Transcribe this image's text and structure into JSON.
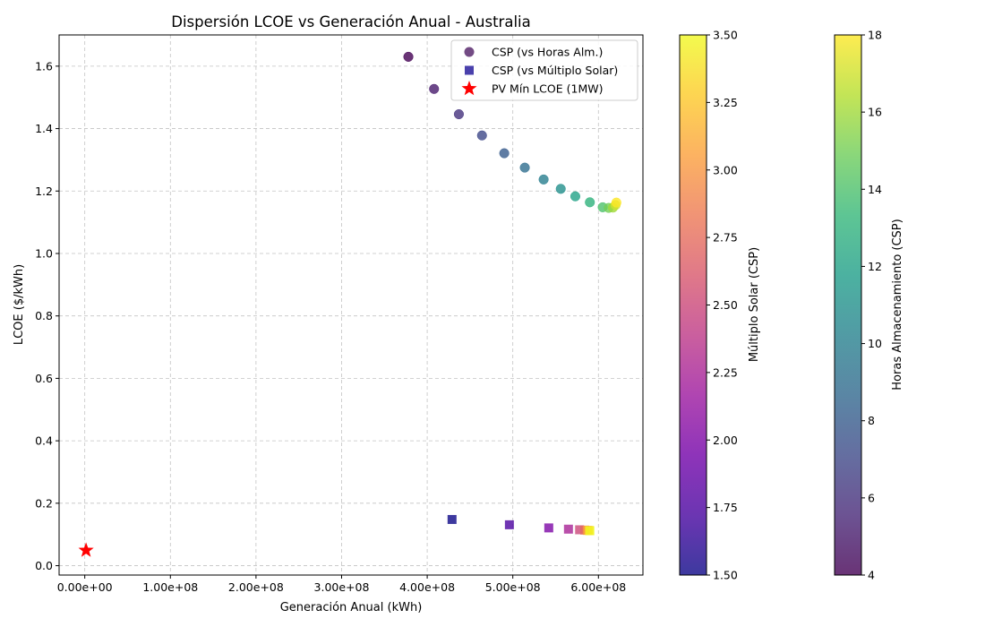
{
  "chart_data": {
    "type": "scatter",
    "title": "Dispersión LCOE vs Generación Anual - Australia",
    "xlabel": "Generación Anual (kWh)",
    "ylabel": "LCOE ($/kWh)",
    "xlim": [
      -30000000,
      652000000
    ],
    "ylim": [
      -0.03,
      1.7
    ],
    "xticks": [
      0,
      100000000,
      200000000,
      300000000,
      400000000,
      500000000,
      600000000
    ],
    "xtick_labels": [
      "0.00e+00",
      "1.00e+08",
      "2.00e+08",
      "3.00e+08",
      "4.00e+08",
      "5.00e+08",
      "6.00e+08"
    ],
    "yticks": [
      0.0,
      0.2,
      0.4,
      0.6,
      0.8,
      1.0,
      1.2,
      1.4,
      1.6
    ],
    "ytick_labels": [
      "0.0",
      "0.2",
      "0.4",
      "0.6",
      "0.8",
      "1.0",
      "1.2",
      "1.4",
      "1.6"
    ],
    "grid": true,
    "legend_position": "top-right",
    "series": [
      {
        "name": "CSP (vs Horas Alm.)",
        "marker": "circle",
        "colorbar": "hours",
        "points": [
          {
            "x": 378000000,
            "y": 1.63,
            "c": 4
          },
          {
            "x": 408000000,
            "y": 1.527,
            "c": 5
          },
          {
            "x": 437000000,
            "y": 1.446,
            "c": 6
          },
          {
            "x": 464000000,
            "y": 1.378,
            "c": 7
          },
          {
            "x": 490000000,
            "y": 1.321,
            "c": 8
          },
          {
            "x": 514000000,
            "y": 1.275,
            "c": 9
          },
          {
            "x": 536000000,
            "y": 1.237,
            "c": 10
          },
          {
            "x": 556000000,
            "y": 1.207,
            "c": 11
          },
          {
            "x": 573000000,
            "y": 1.183,
            "c": 12
          },
          {
            "x": 590000000,
            "y": 1.164,
            "c": 13
          },
          {
            "x": 605000000,
            "y": 1.148,
            "c": 14
          },
          {
            "x": 612000000,
            "y": 1.146,
            "c": 15
          },
          {
            "x": 617000000,
            "y": 1.147,
            "c": 16
          },
          {
            "x": 620000000,
            "y": 1.155,
            "c": 17
          },
          {
            "x": 621000000,
            "y": 1.163,
            "c": 18
          }
        ]
      },
      {
        "name": "CSP (vs Múltiplo Solar)",
        "marker": "square",
        "colorbar": "multiple",
        "points": [
          {
            "x": 429000000,
            "y": 0.148,
            "c": 1.5
          },
          {
            "x": 496000000,
            "y": 0.131,
            "c": 1.75
          },
          {
            "x": 542000000,
            "y": 0.121,
            "c": 2.0
          },
          {
            "x": 565000000,
            "y": 0.117,
            "c": 2.25
          },
          {
            "x": 578000000,
            "y": 0.115,
            "c": 2.5
          },
          {
            "x": 584000000,
            "y": 0.114,
            "c": 2.75
          },
          {
            "x": 587000000,
            "y": 0.113,
            "c": 3.0
          },
          {
            "x": 589000000,
            "y": 0.113,
            "c": 3.25
          },
          {
            "x": 590000000,
            "y": 0.112,
            "c": 3.5
          }
        ]
      },
      {
        "name": "PV Mín LCOE (1MW)",
        "marker": "star",
        "color": "#ff0000",
        "points": [
          {
            "x": 1500000,
            "y": 0.049
          }
        ]
      }
    ],
    "colorbars": [
      {
        "id": "multiple",
        "label": "Múltiplo Solar (CSP)",
        "colormap": "plasma",
        "range": [
          1.5,
          3.5
        ],
        "ticks": [
          1.5,
          1.75,
          2.0,
          2.25,
          2.5,
          2.75,
          3.0,
          3.25,
          3.5
        ],
        "tick_labels": [
          "1.50",
          "1.75",
          "2.00",
          "2.25",
          "2.50",
          "2.75",
          "3.00",
          "3.25",
          "3.50"
        ]
      },
      {
        "id": "hours",
        "label": "Horas Almacenamiento (CSP)",
        "colormap": "viridis",
        "range": [
          4,
          18
        ],
        "ticks": [
          4,
          6,
          8,
          10,
          12,
          14,
          16,
          18
        ],
        "tick_labels": [
          "4",
          "6",
          "8",
          "10",
          "12",
          "14",
          "16",
          "18"
        ]
      }
    ]
  }
}
